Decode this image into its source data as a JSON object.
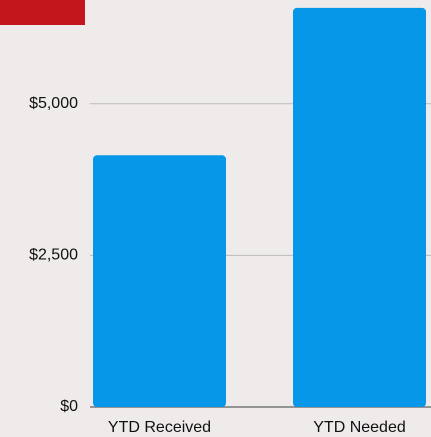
{
  "chart_data": {
    "type": "bar",
    "categories": [
      "YTD Received",
      "YTD Needed"
    ],
    "values": [
      4150,
      6580
    ],
    "color": "#0797e8",
    "ylim": [
      0,
      6700
    ],
    "yticks": [
      {
        "value": 0,
        "label": "$0"
      },
      {
        "value": 2500,
        "label": "$2,500"
      },
      {
        "value": 5000,
        "label": "$5,000"
      }
    ],
    "grid": true
  }
}
